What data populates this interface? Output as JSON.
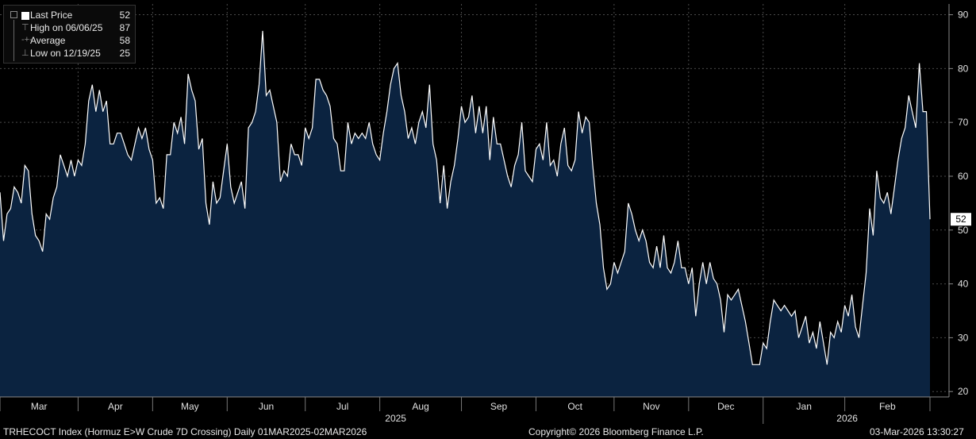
{
  "legend": {
    "last_label": "Last Price",
    "last_value": "52",
    "high_label": "High on 06/06/25",
    "high_value": "87",
    "avg_label": "Average",
    "avg_value": "58",
    "low_label": "Low on 12/19/25",
    "low_value": "25"
  },
  "footer": {
    "left": "TRHECOCT Index (Hormuz E>W Crude 7D Crossing) Daily 01MAR2025-02MAR2026",
    "center": "Copyright© 2026 Bloomberg Finance L.P.",
    "right": "03-Mar-2026 13:30:27"
  },
  "colors": {
    "background": "#000000",
    "fill": "#0b2340",
    "line": "#ffffff",
    "last_badge": "#ffffff"
  },
  "chart_data": {
    "type": "area",
    "title": "",
    "xlabel": "",
    "ylabel": "",
    "ylim": [
      19,
      92
    ],
    "y_ticks": [
      20,
      30,
      40,
      50,
      60,
      70,
      80,
      90
    ],
    "x_tick_labels": [
      "Mar",
      "Apr",
      "May",
      "Jun",
      "Jul",
      "Aug",
      "Sep",
      "Oct",
      "Nov",
      "Dec",
      "Jan",
      "Feb"
    ],
    "year_labels": [
      "2025",
      "2026"
    ],
    "last_value": 52,
    "grid": true,
    "legend_position": "top-left",
    "series": [
      {
        "values": [
          [
            0,
            57
          ],
          [
            1,
            48
          ],
          [
            2,
            53
          ],
          [
            3,
            54
          ],
          [
            4,
            58
          ],
          [
            5,
            57
          ],
          [
            6,
            55
          ],
          [
            7,
            62
          ],
          [
            8,
            61
          ],
          [
            9,
            53
          ],
          [
            10,
            49
          ],
          [
            11,
            48
          ],
          [
            12,
            46
          ],
          [
            13,
            53
          ],
          [
            14,
            52
          ],
          [
            15,
            56
          ],
          [
            16,
            58
          ],
          [
            17,
            64
          ],
          [
            18,
            62
          ],
          [
            19,
            60
          ],
          [
            20,
            63
          ],
          [
            21,
            60
          ],
          [
            22,
            63
          ],
          [
            23,
            62
          ],
          [
            24,
            66
          ],
          [
            25,
            74
          ],
          [
            26,
            77
          ],
          [
            27,
            72
          ],
          [
            28,
            76
          ],
          [
            29,
            72
          ],
          [
            30,
            74
          ],
          [
            31,
            66
          ],
          [
            32,
            66
          ],
          [
            33,
            68
          ],
          [
            34,
            68
          ],
          [
            35,
            66
          ],
          [
            36,
            64
          ],
          [
            37,
            63
          ],
          [
            38,
            66
          ],
          [
            39,
            69
          ],
          [
            40,
            67
          ],
          [
            41,
            69
          ],
          [
            42,
            65
          ],
          [
            43,
            63
          ],
          [
            44,
            55
          ],
          [
            45,
            56
          ],
          [
            46,
            54
          ],
          [
            47,
            64
          ],
          [
            48,
            64
          ],
          [
            49,
            70
          ],
          [
            50,
            68
          ],
          [
            51,
            71
          ],
          [
            52,
            66
          ],
          [
            53,
            79
          ],
          [
            54,
            76
          ],
          [
            55,
            74
          ],
          [
            56,
            65
          ],
          [
            57,
            67
          ],
          [
            58,
            55
          ],
          [
            59,
            51
          ],
          [
            60,
            59
          ],
          [
            61,
            55
          ],
          [
            62,
            56
          ],
          [
            63,
            61
          ],
          [
            64,
            66
          ],
          [
            65,
            58
          ],
          [
            66,
            55
          ],
          [
            67,
            57
          ],
          [
            68,
            59
          ],
          [
            69,
            54
          ],
          [
            70,
            69
          ],
          [
            71,
            70
          ],
          [
            72,
            72
          ],
          [
            73,
            77
          ],
          [
            74,
            87
          ],
          [
            75,
            75
          ],
          [
            76,
            76
          ],
          [
            77,
            73
          ],
          [
            78,
            70
          ],
          [
            79,
            59
          ],
          [
            80,
            61
          ],
          [
            81,
            60
          ],
          [
            82,
            66
          ],
          [
            83,
            64
          ],
          [
            84,
            64
          ],
          [
            85,
            62
          ],
          [
            86,
            69
          ],
          [
            87,
            67
          ],
          [
            88,
            69
          ],
          [
            89,
            78
          ],
          [
            90,
            78
          ],
          [
            91,
            76
          ],
          [
            92,
            75
          ],
          [
            93,
            73
          ],
          [
            94,
            67
          ],
          [
            95,
            66
          ],
          [
            96,
            61
          ],
          [
            97,
            61
          ],
          [
            98,
            70
          ],
          [
            99,
            66
          ],
          [
            100,
            68
          ],
          [
            101,
            67
          ],
          [
            102,
            68
          ],
          [
            103,
            67
          ],
          [
            104,
            70
          ],
          [
            105,
            66
          ],
          [
            106,
            64
          ],
          [
            107,
            63
          ],
          [
            108,
            68
          ],
          [
            109,
            72
          ],
          [
            110,
            77
          ],
          [
            111,
            80
          ],
          [
            112,
            81
          ],
          [
            113,
            75
          ],
          [
            114,
            72
          ],
          [
            115,
            67
          ],
          [
            116,
            69
          ],
          [
            117,
            66
          ],
          [
            118,
            70
          ],
          [
            119,
            72
          ],
          [
            120,
            69
          ],
          [
            121,
            77
          ],
          [
            122,
            66
          ],
          [
            123,
            63
          ],
          [
            124,
            55
          ],
          [
            125,
            62
          ],
          [
            126,
            54
          ],
          [
            127,
            59
          ],
          [
            128,
            62
          ],
          [
            129,
            67
          ],
          [
            130,
            73
          ],
          [
            131,
            70
          ],
          [
            132,
            71
          ],
          [
            133,
            75
          ],
          [
            134,
            68
          ],
          [
            135,
            73
          ],
          [
            136,
            68
          ],
          [
            137,
            73
          ],
          [
            138,
            63
          ],
          [
            139,
            71
          ],
          [
            140,
            66
          ],
          [
            141,
            66
          ],
          [
            142,
            63
          ],
          [
            143,
            60
          ],
          [
            144,
            58
          ],
          [
            145,
            62
          ],
          [
            146,
            64
          ],
          [
            147,
            70
          ],
          [
            148,
            61
          ],
          [
            149,
            60
          ],
          [
            150,
            59
          ],
          [
            151,
            65
          ],
          [
            152,
            66
          ],
          [
            153,
            63
          ],
          [
            154,
            70
          ],
          [
            155,
            62
          ],
          [
            156,
            63
          ],
          [
            157,
            60
          ],
          [
            158,
            66
          ],
          [
            159,
            69
          ],
          [
            160,
            62
          ],
          [
            161,
            61
          ],
          [
            162,
            63
          ],
          [
            163,
            72
          ],
          [
            164,
            68
          ],
          [
            165,
            71
          ],
          [
            166,
            70
          ],
          [
            167,
            62
          ],
          [
            168,
            55
          ],
          [
            169,
            51
          ],
          [
            170,
            43
          ],
          [
            171,
            39
          ],
          [
            172,
            40
          ],
          [
            173,
            44
          ],
          [
            174,
            42
          ],
          [
            175,
            44
          ],
          [
            176,
            46
          ],
          [
            177,
            55
          ],
          [
            178,
            53
          ],
          [
            179,
            50
          ],
          [
            180,
            48
          ],
          [
            181,
            50
          ],
          [
            182,
            48
          ],
          [
            183,
            44
          ],
          [
            184,
            43
          ],
          [
            185,
            47
          ],
          [
            186,
            43
          ],
          [
            187,
            49
          ],
          [
            188,
            43
          ],
          [
            189,
            42
          ],
          [
            190,
            44
          ],
          [
            191,
            48
          ],
          [
            192,
            43
          ],
          [
            193,
            43
          ],
          [
            194,
            40
          ],
          [
            195,
            43
          ],
          [
            196,
            34
          ],
          [
            197,
            40
          ],
          [
            198,
            44
          ],
          [
            199,
            40
          ],
          [
            200,
            44
          ],
          [
            201,
            41
          ],
          [
            202,
            40
          ],
          [
            203,
            37
          ],
          [
            204,
            31
          ],
          [
            205,
            38
          ],
          [
            206,
            37
          ],
          [
            207,
            38
          ],
          [
            208,
            39
          ],
          [
            209,
            36
          ],
          [
            210,
            33
          ],
          [
            211,
            29
          ],
          [
            212,
            25
          ],
          [
            213,
            25
          ],
          [
            214,
            25
          ],
          [
            215,
            29
          ],
          [
            216,
            28
          ],
          [
            217,
            33
          ],
          [
            218,
            37
          ],
          [
            219,
            36
          ],
          [
            220,
            35
          ],
          [
            221,
            36
          ],
          [
            222,
            35
          ],
          [
            223,
            34
          ],
          [
            224,
            35
          ],
          [
            225,
            30
          ],
          [
            226,
            32
          ],
          [
            227,
            34
          ],
          [
            228,
            29
          ],
          [
            229,
            31
          ],
          [
            230,
            28
          ],
          [
            231,
            33
          ],
          [
            232,
            29
          ],
          [
            233,
            25
          ],
          [
            234,
            31
          ],
          [
            235,
            30
          ],
          [
            236,
            33
          ],
          [
            237,
            31
          ],
          [
            238,
            36
          ],
          [
            239,
            34
          ],
          [
            240,
            38
          ],
          [
            241,
            32
          ],
          [
            242,
            30
          ],
          [
            243,
            36
          ],
          [
            244,
            42
          ],
          [
            245,
            54
          ],
          [
            246,
            49
          ],
          [
            247,
            61
          ],
          [
            248,
            56
          ],
          [
            249,
            55
          ],
          [
            250,
            57
          ],
          [
            251,
            53
          ],
          [
            252,
            58
          ],
          [
            253,
            63
          ],
          [
            254,
            67
          ],
          [
            255,
            69
          ],
          [
            256,
            75
          ],
          [
            257,
            72
          ],
          [
            258,
            69
          ],
          [
            259,
            81
          ],
          [
            260,
            72
          ],
          [
            261,
            72
          ],
          [
            262,
            52
          ]
        ]
      }
    ]
  }
}
